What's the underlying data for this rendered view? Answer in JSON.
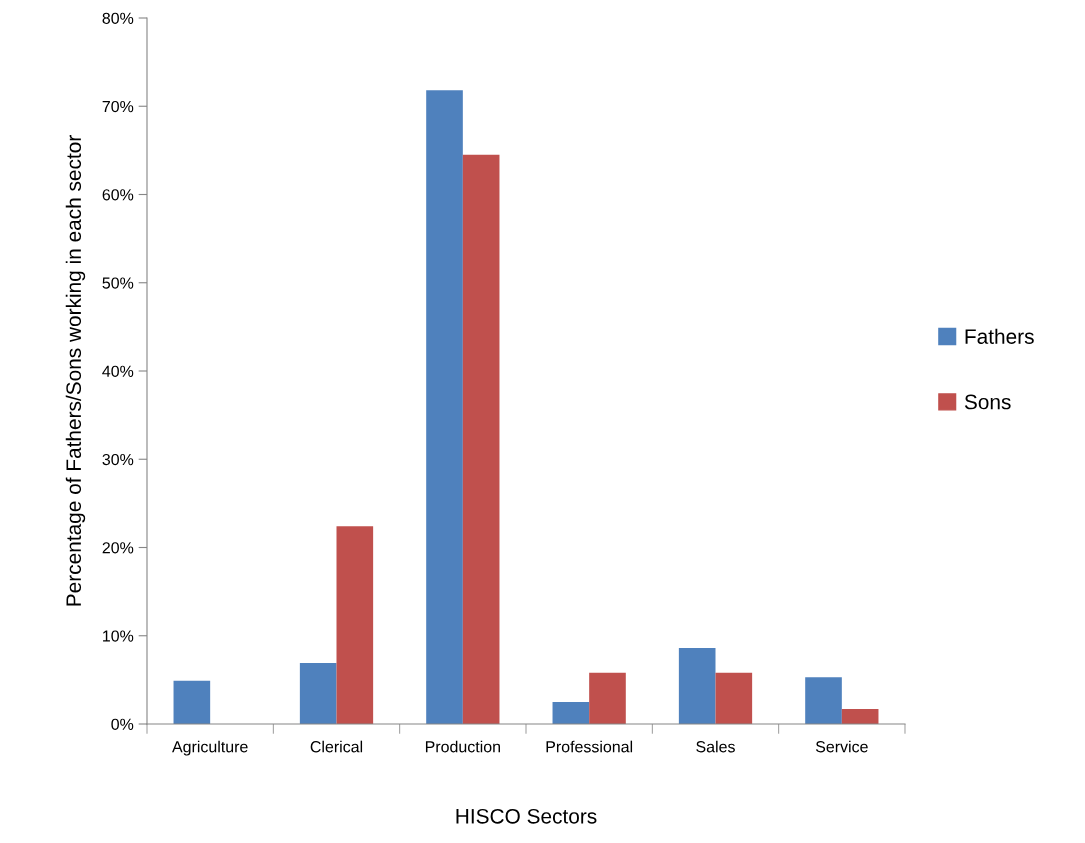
{
  "chart_data": {
    "type": "bar",
    "categories": [
      "Agriculture",
      "Clerical",
      "Production",
      "Professional",
      "Sales",
      "Service"
    ],
    "series": [
      {
        "name": "Fathers",
        "color": "#4f81bd",
        "values": [
          4.9,
          6.9,
          71.8,
          2.5,
          8.6,
          5.3
        ]
      },
      {
        "name": "Sons",
        "color": "#c0504d",
        "values": [
          0,
          22.4,
          64.5,
          5.8,
          5.8,
          1.7
        ]
      }
    ],
    "xlabel": "HISCO Sectors",
    "ylabel": "Percentage of Fathers/Sons working in each sector",
    "ylim": [
      0,
      80
    ],
    "yticks": [
      {
        "value": 0,
        "label": "0%"
      },
      {
        "value": 10,
        "label": "10%"
      },
      {
        "value": 20,
        "label": "20%"
      },
      {
        "value": 30,
        "label": "30%"
      },
      {
        "value": 40,
        "label": "40%"
      },
      {
        "value": 50,
        "label": "50%"
      },
      {
        "value": 60,
        "label": "60%"
      },
      {
        "value": 70,
        "label": "70%"
      },
      {
        "value": 80,
        "label": "80%"
      }
    ],
    "grid": false,
    "legend": "right"
  }
}
